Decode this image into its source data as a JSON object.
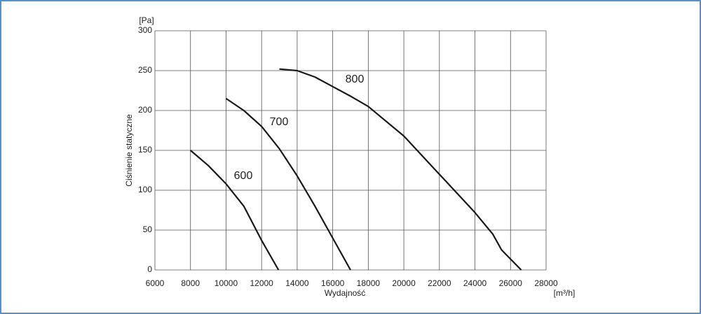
{
  "chart_data": {
    "type": "line",
    "y_label": "Ciśnienie statyczne",
    "x_label": "Wydajność",
    "y_unit": "[Pa]",
    "x_unit": "[m³/h]",
    "xlim": [
      6000,
      28000
    ],
    "ylim": [
      0,
      300
    ],
    "xticks": [
      6000,
      8000,
      10000,
      12000,
      14000,
      16000,
      18000,
      20000,
      22000,
      24000,
      26000,
      28000
    ],
    "yticks": [
      0,
      50,
      100,
      150,
      200,
      250,
      300
    ],
    "grid": true,
    "series": [
      {
        "name": "600",
        "color": "#1a1a1a",
        "x": [
          8000,
          9000,
          10000,
          11000,
          12000,
          12950
        ],
        "values": [
          150,
          131,
          108,
          80,
          37,
          0
        ]
      },
      {
        "name": "700",
        "color": "#1a1a1a",
        "x": [
          10000,
          11000,
          12000,
          13000,
          14000,
          15000,
          16000,
          17000
        ],
        "values": [
          215,
          200,
          180,
          152,
          118,
          80,
          40,
          0
        ]
      },
      {
        "name": "800",
        "color": "#1a1a1a",
        "x": [
          13000,
          14000,
          15000,
          16000,
          17000,
          18000,
          20000,
          22000,
          24000,
          25000,
          25500,
          26600
        ],
        "values": [
          252,
          250,
          242,
          230,
          218,
          205,
          168,
          120,
          72,
          45,
          25,
          0
        ]
      }
    ]
  }
}
